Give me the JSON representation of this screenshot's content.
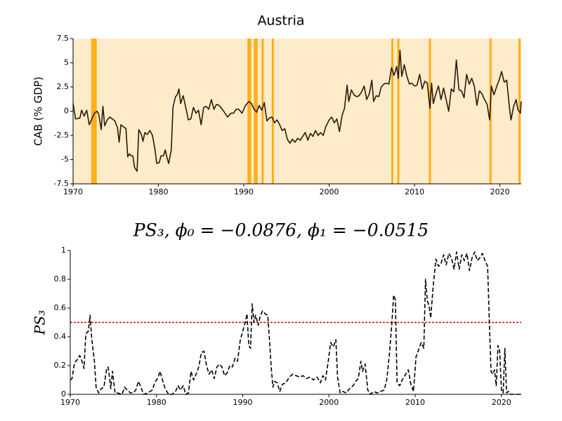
{
  "chart_data": [
    {
      "type": "line",
      "title": "Austria",
      "y_label": "CAB (% GDP)",
      "color": "#2b1a0a",
      "background": "#fdebc9",
      "vline_color": "#ffae1a",
      "vlines": [
        1972.25,
        1972.45,
        1972.65,
        1990.55,
        1990.75,
        1991.3,
        1991.5,
        1992.2,
        1993.4,
        2007.4,
        2008.1,
        2011.8,
        2018.9,
        2022.3
      ],
      "xlim": [
        1970,
        2022.5
      ],
      "xticks": [
        1970,
        1980,
        1990,
        2000,
        2010,
        2020
      ],
      "ylim": [
        -7.5,
        7.5
      ],
      "yticks": [
        -7.5,
        -5,
        -2.5,
        0,
        2.5,
        5,
        7.5
      ],
      "x": [
        1970.0,
        1970.3,
        1970.8,
        1971.0,
        1971.3,
        1971.6,
        1971.9,
        1972.2,
        1972.5,
        1972.8,
        1973.0,
        1973.3,
        1973.5,
        1973.7,
        1974.0,
        1974.3,
        1974.6,
        1974.9,
        1975.2,
        1975.4,
        1975.6,
        1975.9,
        1976.2,
        1976.4,
        1976.6,
        1976.8,
        1977.0,
        1977.2,
        1977.5,
        1977.7,
        1978.0,
        1978.2,
        1978.4,
        1978.7,
        1979.0,
        1979.3,
        1979.6,
        1979.8,
        1980.1,
        1980.3,
        1980.6,
        1980.8,
        1981.0,
        1981.2,
        1981.5,
        1981.7,
        1982.0,
        1982.2,
        1982.4,
        1982.6,
        1982.9,
        1983.2,
        1983.5,
        1983.8,
        1984.1,
        1984.4,
        1984.7,
        1985.0,
        1985.3,
        1985.6,
        1985.9,
        1986.2,
        1986.5,
        1986.8,
        1987.1,
        1987.4,
        1987.8,
        1988.1,
        1988.5,
        1988.8,
        1989.1,
        1989.4,
        1989.8,
        1990.2,
        1990.6,
        1990.9,
        1991.2,
        1991.5,
        1991.8,
        1992.1,
        1992.4,
        1992.7,
        1993.0,
        1993.3,
        1993.6,
        1993.9,
        1994.2,
        1994.5,
        1994.8,
        1995.1,
        1995.4,
        1995.7,
        1996.0,
        1996.3,
        1996.6,
        1996.9,
        1997.2,
        1997.5,
        1997.8,
        1998.1,
        1998.4,
        1998.7,
        1999.0,
        1999.3,
        1999.6,
        2000.0,
        2000.3,
        2000.6,
        2000.9,
        2001.2,
        2001.5,
        2001.8,
        2002.1,
        2002.3,
        2002.6,
        2002.9,
        2003.2,
        2003.5,
        2003.8,
        2004.1,
        2004.4,
        2004.7,
        2005.0,
        2005.2,
        2005.5,
        2005.8,
        2006.1,
        2006.4,
        2006.7,
        2007.0,
        2007.3,
        2007.6,
        2007.9,
        2008.1,
        2008.3,
        2008.5,
        2008.8,
        2009.1,
        2009.4,
        2009.7,
        2010.0,
        2010.3,
        2010.6,
        2010.9,
        2011.2,
        2011.5,
        2011.8,
        2012.0,
        2012.2,
        2012.5,
        2012.8,
        2013.1,
        2013.4,
        2013.7,
        2014.0,
        2014.3,
        2014.6,
        2014.9,
        2015.2,
        2015.5,
        2015.8,
        2016.1,
        2016.4,
        2016.7,
        2017.0,
        2017.3,
        2017.6,
        2017.9,
        2018.2,
        2018.5,
        2018.8,
        2019.0,
        2019.3,
        2019.6,
        2019.9,
        2020.2,
        2020.5,
        2020.8,
        2021.1,
        2021.3,
        2021.6,
        2021.9,
        2022.1,
        2022.4,
        2022.5
      ],
      "values": [
        0.8,
        -0.8,
        -0.7,
        0.1,
        -0.5,
        0.1,
        -1.4,
        -0.8,
        -0.2,
        0.0,
        -0.3,
        -1.9,
        0.5,
        -1.5,
        -0.9,
        -0.6,
        -0.8,
        -1.0,
        -1.7,
        -3.2,
        -1.4,
        -1.6,
        -1.8,
        -4.7,
        -4.4,
        -4.6,
        -4.6,
        -5.8,
        -6.2,
        -1.9,
        -2.4,
        -3.1,
        -2.2,
        -2.4,
        -2.0,
        -2.5,
        -4.0,
        -5.4,
        -5.3,
        -4.6,
        -4.6,
        -4.0,
        -4.8,
        -5.4,
        -4.0,
        0.4,
        1.5,
        1.7,
        2.3,
        0.8,
        1.6,
        0.4,
        -0.9,
        -0.8,
        0.4,
        -0.2,
        0.1,
        -1.4,
        0.4,
        0.5,
        0.2,
        1.2,
        0.2,
        0.7,
        0.6,
        0.3,
        -0.2,
        -0.6,
        -0.2,
        -0.2,
        0.2,
        0.2,
        -0.2,
        0.6,
        1.0,
        0.8,
        0.2,
        -0.1,
        0.6,
        0.1,
        0.9,
        -1.0,
        -0.7,
        -0.6,
        -1.2,
        -0.9,
        -1.4,
        -2.0,
        -1.8,
        -2.9,
        -3.3,
        -2.9,
        -3.2,
        -2.8,
        -3.0,
        -2.6,
        -2.2,
        -3.0,
        -2.3,
        -2.6,
        -2.0,
        -2.5,
        -2.2,
        -2.5,
        -1.6,
        -0.9,
        -0.6,
        -1.2,
        -0.8,
        -2.1,
        -0.5,
        0.3,
        2.7,
        1.0,
        2.2,
        1.7,
        1.5,
        1.6,
        2.0,
        2.6,
        1.2,
        1.8,
        3.2,
        1.0,
        1.6,
        1.5,
        2.5,
        2.8,
        2.9,
        2.8,
        4.5,
        3.7,
        4.6,
        3.4,
        6.3,
        3.6,
        4.8,
        3.6,
        2.8,
        2.9,
        2.6,
        2.7,
        3.8,
        2.3,
        3.1,
        2.9,
        0.3,
        2.9,
        0.8,
        1.8,
        2.6,
        1.2,
        2.4,
        1.2,
        0.0,
        2.3,
        2.0,
        5.3,
        2.2,
        2.1,
        1.4,
        3.8,
        2.8,
        3.4,
        2.6,
        0.6,
        2.1,
        1.8,
        1.2,
        0.7,
        -0.9,
        2.6,
        1.7,
        2.5,
        3.2,
        4.1,
        3.0,
        3.2,
        0.5,
        -0.9,
        0.5,
        1.2,
        0.2,
        -0.2,
        1.0
      ]
    },
    {
      "type": "line",
      "title": "PS₃, ϕ₀ = −0.0876, ϕ₁ = −0.0515",
      "y_label": "PS₃",
      "color": "#000000",
      "dashed": true,
      "hline": 0.5,
      "hline_color": "#dd0000",
      "xlim": [
        1970,
        2022.3
      ],
      "xticks": [
        1970,
        1980,
        1990,
        2000,
        2010,
        2020
      ],
      "ylim": [
        0,
        1
      ],
      "yticks": [
        0,
        0.2,
        0.4,
        0.6,
        0.8,
        1
      ],
      "x": [
        1970.0,
        1970.2,
        1970.5,
        1970.8,
        1971.1,
        1971.3,
        1971.6,
        1971.8,
        1972.1,
        1972.3,
        1972.5,
        1972.8,
        1973.0,
        1973.3,
        1973.6,
        1973.9,
        1974.2,
        1974.4,
        1974.7,
        1974.9,
        1975.2,
        1975.5,
        1976.0,
        1976.3,
        1976.6,
        1977.0,
        1977.3,
        1977.6,
        1977.9,
        1978.2,
        1978.5,
        1979.0,
        1979.5,
        1979.8,
        1980.2,
        1980.4,
        1980.7,
        1981.0,
        1981.4,
        1981.8,
        1982.2,
        1982.5,
        1982.8,
        1983.1,
        1983.4,
        1983.7,
        1984.0,
        1984.3,
        1984.6,
        1984.9,
        1985.2,
        1985.5,
        1985.8,
        1986.1,
        1986.4,
        1986.7,
        1987.0,
        1987.3,
        1987.6,
        1987.9,
        1988.2,
        1988.5,
        1988.8,
        1989.1,
        1989.4,
        1989.7,
        1990.0,
        1990.3,
        1990.5,
        1990.7,
        1990.9,
        1991.1,
        1991.3,
        1991.5,
        1991.8,
        1992.0,
        1992.3,
        1992.6,
        1992.9,
        1993.1,
        1993.3,
        1993.5,
        1993.7,
        1994.0,
        1994.3,
        1994.6,
        1995.0,
        1995.4,
        1995.8,
        1996.2,
        1996.6,
        1997.0,
        1997.4,
        1997.8,
        1998.2,
        1998.6,
        1999.0,
        1999.3,
        1999.6,
        1999.9,
        2000.2,
        2000.5,
        2000.8,
        2001.0,
        2001.3,
        2001.6,
        2002.0,
        2002.4,
        2002.8,
        2003.1,
        2003.4,
        2003.7,
        2003.9,
        2004.2,
        2004.5,
        2004.8,
        2005.2,
        2005.6,
        2006.0,
        2006.4,
        2006.7,
        2007.0,
        2007.3,
        2007.5,
        2007.7,
        2007.9,
        2008.2,
        2008.5,
        2008.9,
        2009.2,
        2009.5,
        2009.8,
        2010.1,
        2010.4,
        2010.7,
        2011.0,
        2011.2,
        2011.4,
        2011.6,
        2011.8,
        2012.1,
        2012.4,
        2012.7,
        2013.0,
        2013.3,
        2013.6,
        2013.9,
        2014.2,
        2014.5,
        2014.8,
        2015.1,
        2015.4,
        2015.7,
        2016.0,
        2016.3,
        2016.6,
        2016.9,
        2017.2,
        2017.5,
        2017.8,
        2018.1,
        2018.4,
        2018.6,
        2018.8,
        2019.0,
        2019.2,
        2019.4,
        2019.6,
        2019.8,
        2020.0,
        2020.2,
        2020.4,
        2020.6,
        2020.8,
        2021.1,
        2021.5,
        2022.0,
        2022.3
      ],
      "values": [
        0.1,
        0.11,
        0.22,
        0.24,
        0.27,
        0.24,
        0.18,
        0.42,
        0.44,
        0.55,
        0.38,
        0.23,
        0.05,
        0.01,
        0.04,
        0.05,
        0.17,
        0.19,
        0.04,
        0.16,
        0.01,
        0.01,
        0.0,
        0.05,
        0.03,
        0.01,
        0.01,
        0.03,
        0.09,
        0.05,
        0.0,
        0.01,
        0.03,
        0.08,
        0.12,
        0.16,
        0.1,
        0.04,
        0.0,
        0.0,
        0.02,
        0.06,
        0.03,
        0.06,
        0.0,
        0.01,
        0.16,
        0.1,
        0.14,
        0.19,
        0.29,
        0.3,
        0.2,
        0.14,
        0.17,
        0.11,
        0.19,
        0.21,
        0.19,
        0.13,
        0.15,
        0.2,
        0.19,
        0.25,
        0.23,
        0.37,
        0.44,
        0.5,
        0.56,
        0.34,
        0.32,
        0.63,
        0.5,
        0.55,
        0.48,
        0.54,
        0.58,
        0.56,
        0.55,
        0.38,
        0.19,
        0.05,
        0.09,
        0.08,
        0.02,
        0.07,
        0.08,
        0.12,
        0.14,
        0.13,
        0.12,
        0.13,
        0.11,
        0.12,
        0.1,
        0.12,
        0.08,
        0.13,
        0.1,
        0.22,
        0.36,
        0.33,
        0.38,
        0.12,
        0.01,
        0.02,
        0.01,
        0.04,
        0.06,
        0.09,
        0.11,
        0.23,
        0.16,
        0.21,
        0.03,
        0.0,
        0.02,
        0.01,
        0.02,
        0.03,
        0.1,
        0.27,
        0.5,
        0.69,
        0.66,
        0.08,
        0.06,
        0.1,
        0.14,
        0.17,
        0.07,
        0.02,
        0.26,
        0.31,
        0.36,
        0.32,
        0.8,
        0.65,
        0.62,
        0.53,
        0.76,
        0.94,
        0.89,
        0.91,
        0.97,
        0.9,
        0.98,
        0.95,
        0.87,
        0.99,
        0.87,
        0.97,
        0.93,
        0.98,
        0.86,
        0.95,
        0.99,
        0.93,
        0.95,
        0.98,
        0.93,
        0.89,
        0.5,
        0.16,
        0.14,
        0.17,
        0.06,
        0.34,
        0.3,
        0.03,
        0.01,
        0.32,
        0.01,
        0.02,
        0.0,
        0.0,
        0.0,
        0.0
      ]
    }
  ]
}
